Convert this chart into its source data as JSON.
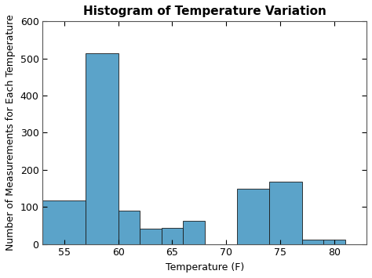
{
  "title": "Histogram of Temperature Variation",
  "xlabel": "Temperature (F)",
  "ylabel": "Number of Measurements for Each Temperature",
  "bar_color": "#5BA3C9",
  "edge_color": "#1a1a1a",
  "xlim": [
    53,
    83
  ],
  "ylim": [
    0,
    600
  ],
  "yticks": [
    0,
    100,
    200,
    300,
    400,
    500,
    600
  ],
  "xticks": [
    55,
    60,
    65,
    70,
    75,
    80
  ],
  "bins": [
    53,
    57,
    60,
    62,
    64,
    66,
    68,
    71,
    74,
    77,
    79,
    81
  ],
  "counts": [
    118,
    515,
    90,
    42,
    43,
    63,
    0,
    150,
    168,
    12,
    12
  ],
  "background_color": "#ffffff",
  "title_fontsize": 11,
  "label_fontsize": 9,
  "tick_fontsize": 9
}
